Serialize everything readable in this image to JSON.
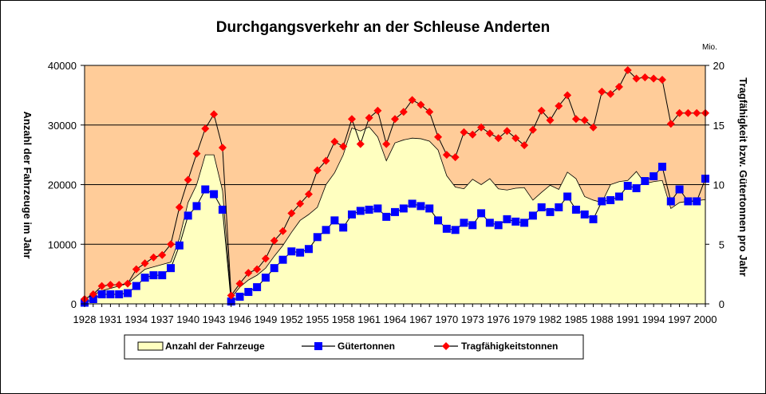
{
  "chart_data": {
    "type": "line",
    "title": "Durchgangsverkehr an der Schleuse Anderten",
    "ylabel_left": "Anzahl der Fahrzeuge im Jahr",
    "ylabel_right": "Tragfähigkeit bzw. Gütertonnen pro Jahr",
    "y2_unit": "Mio.",
    "ylim_left": [
      0,
      40000
    ],
    "ylim_right": [
      0,
      20
    ],
    "yticks_left": [
      "0",
      "10000",
      "20000",
      "30000",
      "40000"
    ],
    "yticks_right": [
      "0",
      "5",
      "10",
      "15",
      "20"
    ],
    "xlim": [
      1928,
      2000
    ],
    "xticks": [
      "1928",
      "1931",
      "1934",
      "1937",
      "1940",
      "1943",
      "1946",
      "1949",
      "1952",
      "1955",
      "1958",
      "1961",
      "1964",
      "1967",
      "1970",
      "1973",
      "1976",
      "1979",
      "1982",
      "1985",
      "1988",
      "1991",
      "1994",
      "1997",
      "2000"
    ],
    "grid": true,
    "legend_position": "bottom",
    "colors": {
      "plot_background": "#ffcc99",
      "area": "#ffffc0",
      "guetertonnen": "#0000ff",
      "tragfaehigkeit": "#ff0000"
    },
    "series": [
      {
        "name": "Anzahl der Fahrzeuge",
        "type": "area",
        "axis": "left",
        "x": [
          1928,
          1929,
          1930,
          1931,
          1932,
          1933,
          1934,
          1935,
          1936,
          1937,
          1938,
          1939,
          1940,
          1941,
          1942,
          1943,
          1944,
          1945,
          1946,
          1947,
          1948,
          1949,
          1950,
          1951,
          1952,
          1953,
          1954,
          1955,
          1956,
          1957,
          1958,
          1959,
          1960,
          1961,
          1962,
          1963,
          1964,
          1965,
          1966,
          1967,
          1968,
          1969,
          1970,
          1971,
          1972,
          1973,
          1974,
          1975,
          1976,
          1977,
          1978,
          1979,
          1980,
          1981,
          1982,
          1983,
          1984,
          1985,
          1986,
          1987,
          1988,
          1989,
          1990,
          1991,
          1992,
          1993,
          1994,
          1995,
          1996,
          1997,
          1998,
          1999,
          2000
        ],
        "values": [
          800,
          1500,
          2200,
          2600,
          3000,
          3400,
          4600,
          5800,
          6200,
          6600,
          7000,
          11000,
          17000,
          20000,
          25000,
          25000,
          19000,
          1000,
          2800,
          4000,
          4800,
          6000,
          8000,
          9800,
          12000,
          14000,
          15000,
          16200,
          20000,
          22000,
          25000,
          29500,
          29000,
          29700,
          28000,
          24000,
          27000,
          27500,
          27800,
          27700,
          27300,
          25800,
          21500,
          19600,
          19300,
          20900,
          20000,
          21000,
          19300,
          19100,
          19400,
          19500,
          17400,
          18700,
          19900,
          19200,
          22100,
          21000,
          18000,
          17400,
          17000,
          20000,
          20500,
          20700,
          22200,
          20200,
          20500,
          20700,
          16000,
          17000,
          17200,
          17300,
          17500
        ]
      },
      {
        "name": "Gütertonnen",
        "type": "line",
        "axis": "right",
        "x": [
          1928,
          1929,
          1930,
          1931,
          1932,
          1933,
          1934,
          1935,
          1936,
          1937,
          1938,
          1939,
          1940,
          1941,
          1942,
          1943,
          1944,
          1945,
          1946,
          1947,
          1948,
          1949,
          1950,
          1951,
          1952,
          1953,
          1954,
          1955,
          1956,
          1957,
          1958,
          1959,
          1960,
          1961,
          1962,
          1963,
          1964,
          1965,
          1966,
          1967,
          1968,
          1969,
          1970,
          1971,
          1972,
          1973,
          1974,
          1975,
          1976,
          1977,
          1978,
          1979,
          1980,
          1981,
          1982,
          1983,
          1984,
          1985,
          1986,
          1987,
          1988,
          1989,
          1990,
          1991,
          1992,
          1993,
          1994,
          1995,
          1996,
          1997,
          1998,
          1999,
          2000
        ],
        "values": [
          0.1,
          0.4,
          0.8,
          0.8,
          0.8,
          0.9,
          1.5,
          2.2,
          2.4,
          2.4,
          3.0,
          4.9,
          7.4,
          8.2,
          9.6,
          9.2,
          7.9,
          0.2,
          0.6,
          1.0,
          1.4,
          2.2,
          3.0,
          3.7,
          4.4,
          4.3,
          4.6,
          5.6,
          6.2,
          7.0,
          6.4,
          7.5,
          7.8,
          7.9,
          8.0,
          7.3,
          7.7,
          8.0,
          8.4,
          8.2,
          8.0,
          7.0,
          6.3,
          6.2,
          6.8,
          6.6,
          7.6,
          6.8,
          6.6,
          7.1,
          6.9,
          6.8,
          7.4,
          8.1,
          7.7,
          8.1,
          9.0,
          7.9,
          7.5,
          7.1,
          8.6,
          8.7,
          9.0,
          9.9,
          9.7,
          10.3,
          10.7,
          11.5,
          8.6,
          9.6,
          8.6,
          8.6,
          10.5
        ]
      },
      {
        "name": "Tragfähigkeitstonnen",
        "type": "line",
        "axis": "right",
        "x": [
          1928,
          1929,
          1930,
          1931,
          1932,
          1933,
          1934,
          1935,
          1936,
          1937,
          1938,
          1939,
          1940,
          1941,
          1942,
          1943,
          1944,
          1945,
          1946,
          1947,
          1948,
          1949,
          1950,
          1951,
          1952,
          1953,
          1954,
          1955,
          1956,
          1957,
          1958,
          1959,
          1960,
          1961,
          1962,
          1963,
          1964,
          1965,
          1966,
          1967,
          1968,
          1969,
          1970,
          1971,
          1972,
          1973,
          1974,
          1975,
          1976,
          1977,
          1978,
          1979,
          1980,
          1981,
          1982,
          1983,
          1984,
          1985,
          1986,
          1987,
          1988,
          1989,
          1990,
          1991,
          1992,
          1993,
          1994,
          1995,
          1996,
          1997,
          1998,
          1999,
          2000
        ],
        "values": [
          0.4,
          0.8,
          1.5,
          1.6,
          1.6,
          1.7,
          2.9,
          3.4,
          3.9,
          4.1,
          5.0,
          8.1,
          10.4,
          12.6,
          14.7,
          15.9,
          13.1,
          0.7,
          1.7,
          2.6,
          2.9,
          3.8,
          5.3,
          6.1,
          7.6,
          8.4,
          9.2,
          11.2,
          12.0,
          13.6,
          13.2,
          15.5,
          13.4,
          15.6,
          16.2,
          13.4,
          15.5,
          16.1,
          17.1,
          16.7,
          16.1,
          14.0,
          12.5,
          12.3,
          14.4,
          14.2,
          14.8,
          14.3,
          13.9,
          14.5,
          13.9,
          13.3,
          14.6,
          16.2,
          15.4,
          16.6,
          17.5,
          15.5,
          15.4,
          14.8,
          17.8,
          17.6,
          18.2,
          19.6,
          18.9,
          19.0,
          18.9,
          18.8,
          15.1,
          16.0,
          16.0,
          16.0,
          16.0
        ]
      }
    ]
  }
}
